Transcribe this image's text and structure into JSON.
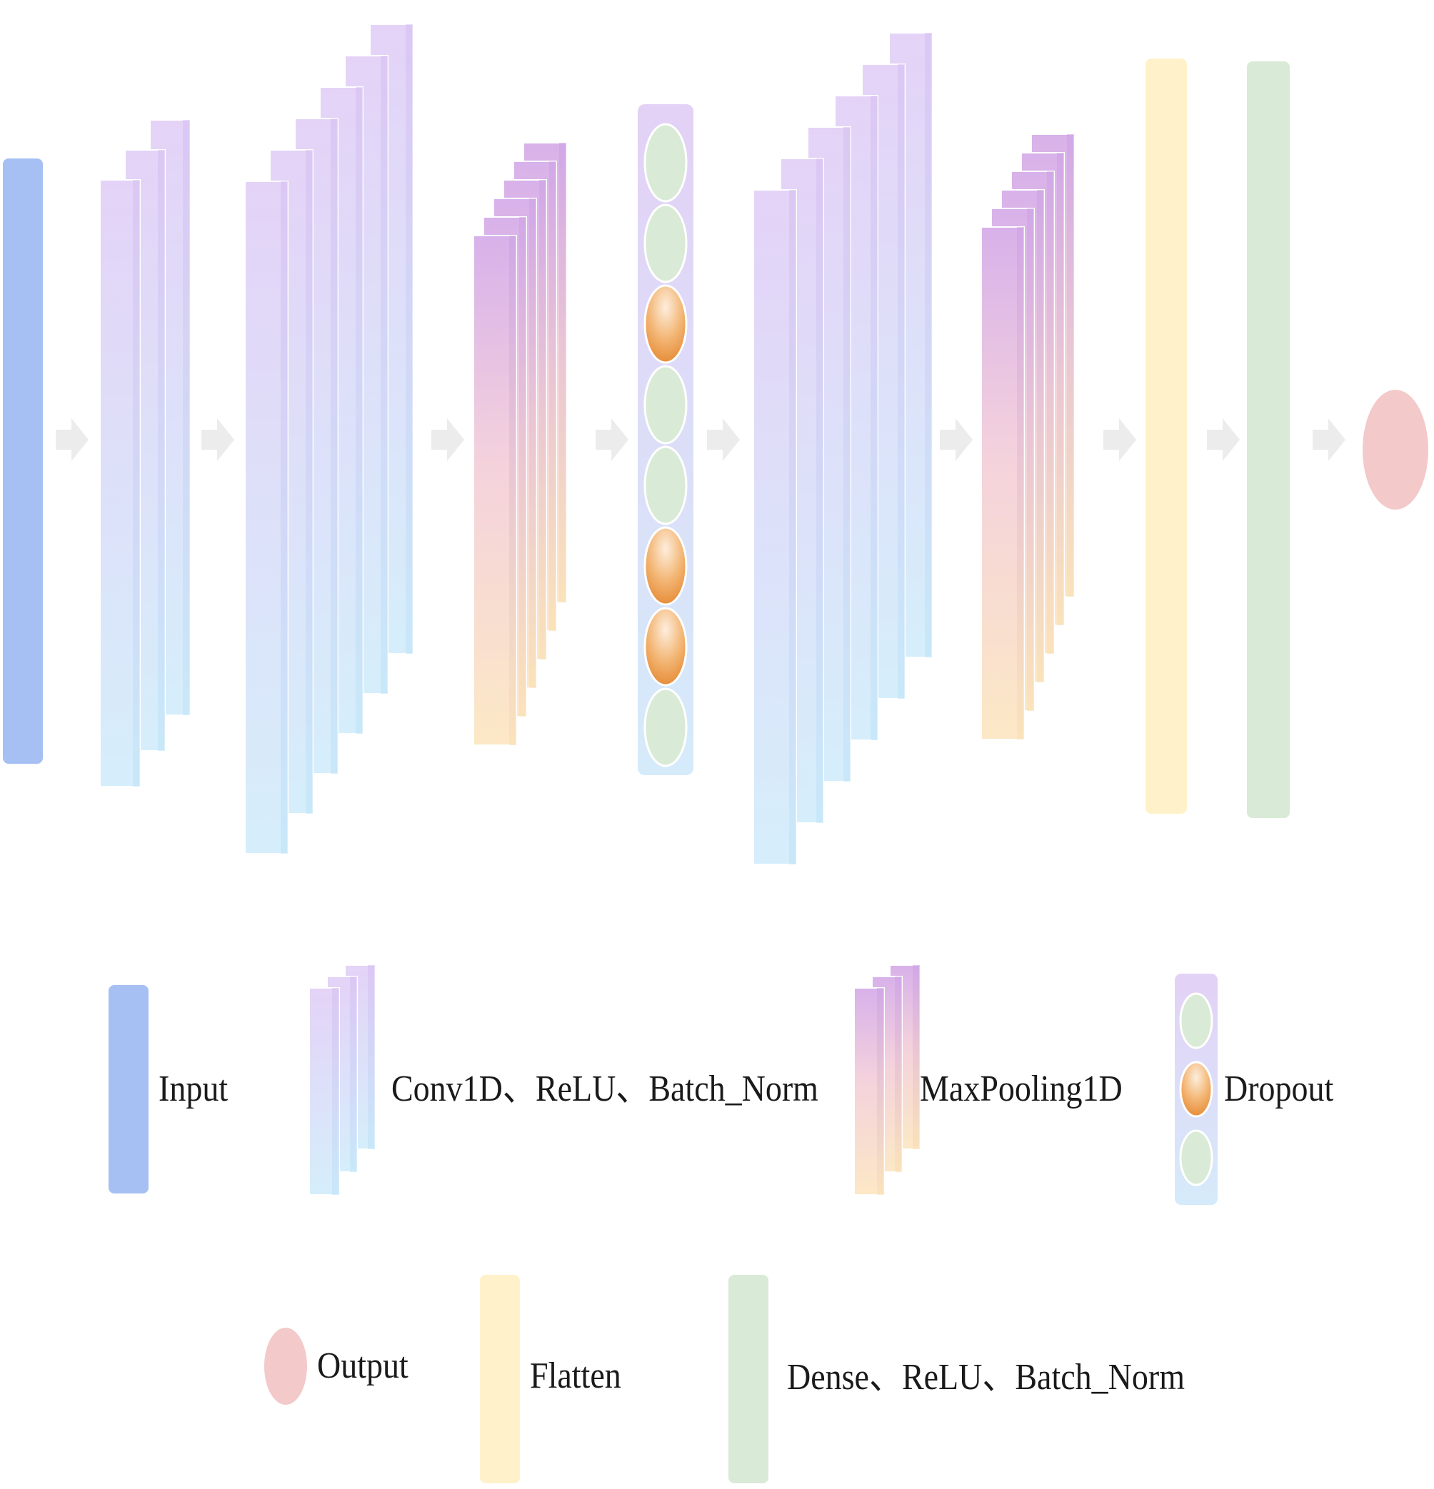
{
  "colors": {
    "input": "#a7c1f4",
    "conv_top": "#e5d6f7",
    "conv_bottom": "#d8effb",
    "conv_edge_top": "#d9c3f2",
    "conv_edge_bottom": "#bfe3f8",
    "pool_top": "#d7b4ea",
    "pool_bottom": "#fbe7c6",
    "dropout_frame_top": "#e2d2f6",
    "dropout_frame_bottom": "#d7ecfa",
    "dropout_keep": "#d9ead6",
    "dropout_drop_light": "#fbe3cc",
    "dropout_drop_dark": "#ec9a4a",
    "flatten": "#fff2ca",
    "dense": "#d9ead6",
    "output": "#f3c8c8",
    "arrow": "#eeeeee"
  },
  "network": {
    "layers": [
      "Input",
      "Conv1D、ReLU、Batch_Norm",
      "Conv1D、ReLU、Batch_Norm",
      "MaxPooling1D",
      "Dropout",
      "Conv1D、ReLU、Batch_Norm",
      "MaxPooling1D",
      "Flatten",
      "Dense、ReLU、Batch_Norm",
      "Output"
    ],
    "dropout_pattern": [
      "keep",
      "keep",
      "drop",
      "keep",
      "keep",
      "drop",
      "drop",
      "keep"
    ]
  },
  "legend": {
    "input": "Input",
    "conv": "Conv1D、ReLU、Batch_Norm",
    "pool": "MaxPooling1D",
    "dropout": "Dropout",
    "output": "Output",
    "flatten": "Flatten",
    "dense": "Dense、ReLU、Batch_Norm"
  }
}
